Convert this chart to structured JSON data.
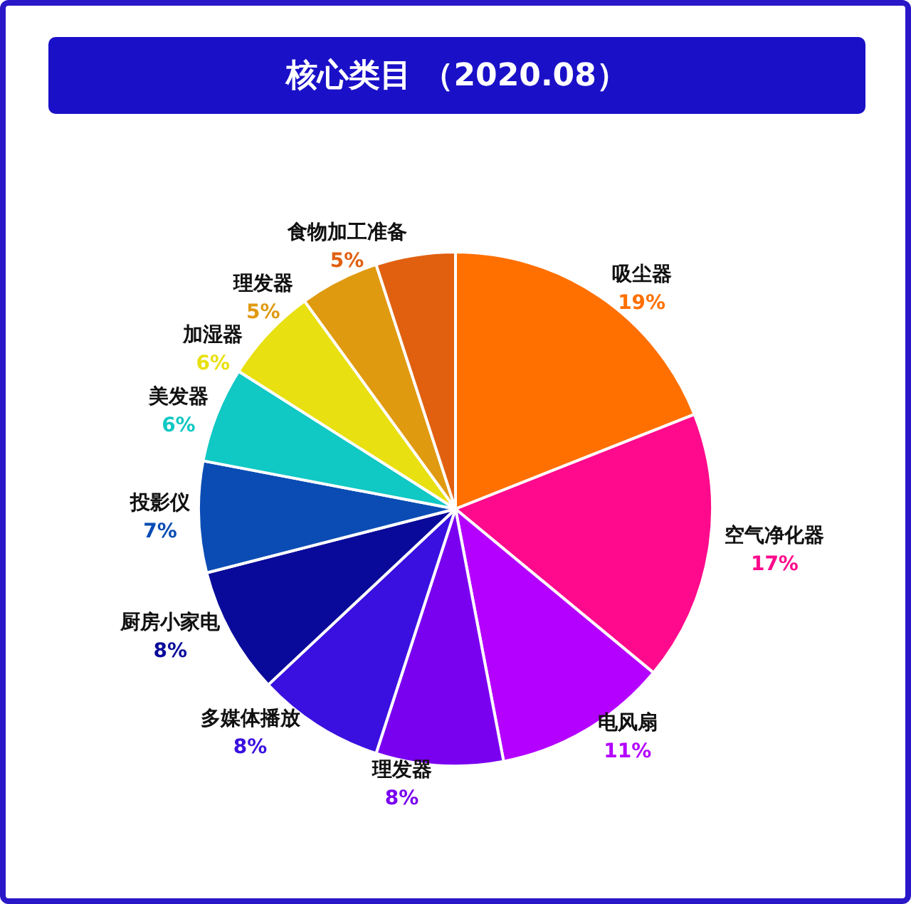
{
  "chart_data": {
    "type": "pie",
    "title": "核心类目 （2020.08）",
    "categories": [
      "吸尘器",
      "空气净化器",
      "电风扇",
      "理发器",
      "多媒体播放",
      "厨房小家电",
      "投影仪",
      "美发器",
      "加湿器",
      "理发器",
      "食物加工准备"
    ],
    "values": [
      19,
      17,
      11,
      8,
      8,
      8,
      7,
      6,
      6,
      5,
      5
    ],
    "value_labels": [
      "19%",
      "17%",
      "11%",
      "8%",
      "8%",
      "8%",
      "7%",
      "6%",
      "6%",
      "5%",
      "5%"
    ],
    "colors": [
      "#ff7000",
      "#ff0a8c",
      "#b400ff",
      "#7a00f0",
      "#3a10e0",
      "#0a0a9a",
      "#0a4cb4",
      "#10c8c4",
      "#e8e010",
      "#e09a10",
      "#e06010"
    ],
    "legend": false
  }
}
